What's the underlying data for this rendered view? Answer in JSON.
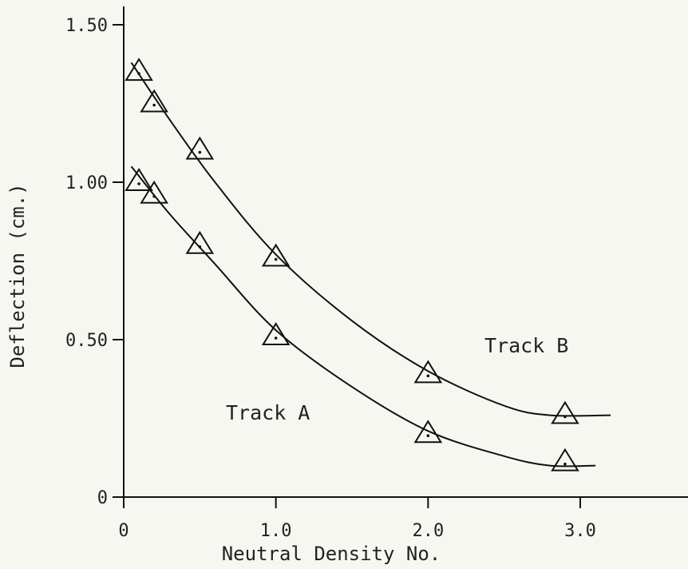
{
  "chart_data": {
    "type": "scatter",
    "xlabel": "Neutral Density No.",
    "ylabel": "Deflection (cm.)",
    "xlim": [
      0,
      3.6
    ],
    "ylim": [
      0,
      1.55
    ],
    "x_ticks": [
      {
        "value": 0,
        "label": "0"
      },
      {
        "value": 1.0,
        "label": "1.0"
      },
      {
        "value": 2.0,
        "label": "2.0"
      },
      {
        "value": 3.0,
        "label": "3.0"
      }
    ],
    "y_ticks": [
      {
        "value": 0,
        "label": "0"
      },
      {
        "value": 0.5,
        "label": "0.50"
      },
      {
        "value": 1.0,
        "label": "1.00"
      },
      {
        "value": 1.5,
        "label": "1.50"
      }
    ],
    "grid": false,
    "legend": "none",
    "series": [
      {
        "name": "Track A",
        "marker": "triangle",
        "x": [
          0.1,
          0.2,
          0.5,
          1.0,
          2.0,
          2.9
        ],
        "y": [
          1.0,
          0.96,
          0.8,
          0.51,
          0.2,
          0.11
        ],
        "fit_curve": {
          "x": [
            0.05,
            0.3,
            0.6,
            1.0,
            1.5,
            2.0,
            2.5,
            2.8,
            3.1
          ],
          "y": [
            1.05,
            0.9,
            0.74,
            0.53,
            0.35,
            0.21,
            0.13,
            0.1,
            0.1
          ]
        }
      },
      {
        "name": "Track B",
        "marker": "triangle",
        "x": [
          0.1,
          0.2,
          0.5,
          1.0,
          2.0,
          2.9
        ],
        "y": [
          1.35,
          1.25,
          1.1,
          0.76,
          0.39,
          0.26
        ],
        "fit_curve": {
          "x": [
            0.05,
            0.3,
            0.6,
            1.0,
            1.5,
            2.0,
            2.5,
            2.8,
            3.2
          ],
          "y": [
            1.38,
            1.2,
            1.0,
            0.77,
            0.56,
            0.4,
            0.29,
            0.26,
            0.26
          ]
        }
      }
    ]
  }
}
